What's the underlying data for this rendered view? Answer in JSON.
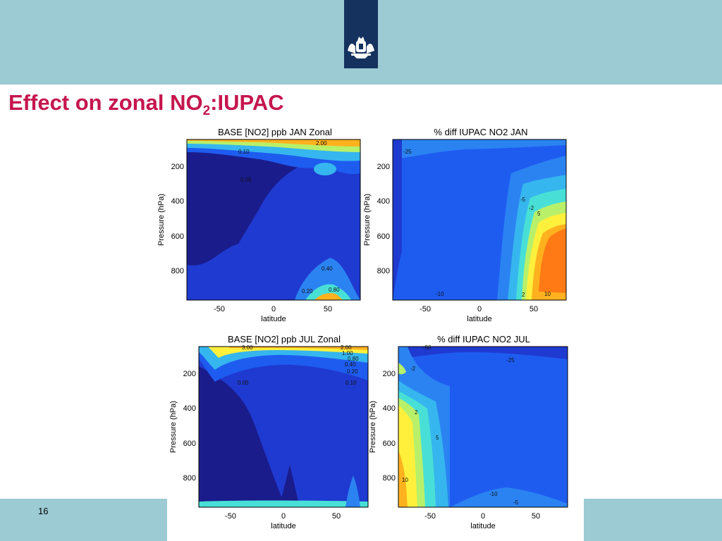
{
  "slide": {
    "title_main": "Effect on zonal NO",
    "title_sub": "2",
    "title_tail": ":IUPAC",
    "page_number": "16"
  },
  "colors": {
    "band": "#9ccbd3",
    "logo_box": "#15325e",
    "title": "#c5164d",
    "contour_scale": [
      "#1a1c8c",
      "#1f3ad0",
      "#1e5cf0",
      "#2b83f2",
      "#36b6ee",
      "#48e0d6",
      "#b8f06a",
      "#fff03c",
      "#ffb21e",
      "#ff7a14",
      "#e84a0c"
    ]
  },
  "logo": {
    "icon": "coat-of-arms-icon"
  },
  "chart_data": [
    {
      "type": "heatmap",
      "title": "BASE [NO2] ppb JAN Zonal",
      "xlabel": "latitude",
      "ylabel": "Pressure (hPa)",
      "xlim": [
        -80,
        80
      ],
      "ylim": [
        1000,
        70
      ],
      "x_ticks": [
        -50,
        0,
        50
      ],
      "y_ticks": [
        200,
        400,
        600,
        800
      ],
      "contour_labels": [
        "2.00",
        "0.10",
        "0.05",
        "0.40",
        "0.20",
        "0.80"
      ]
    },
    {
      "type": "heatmap",
      "title": "% diff IUPAC NO2 JAN",
      "xlabel": "latitude",
      "ylabel": "Pressure (hPa)",
      "xlim": [
        -80,
        80
      ],
      "ylim": [
        1000,
        70
      ],
      "x_ticks": [
        -50,
        0,
        50
      ],
      "y_ticks": [
        200,
        400,
        600,
        800
      ],
      "contour_labels": [
        "-25",
        "-10",
        "-5",
        "-2",
        "5",
        "2",
        "10"
      ]
    },
    {
      "type": "heatmap",
      "title": "BASE [NO2] ppb JUL Zonal",
      "xlabel": "latitude",
      "ylabel": "Pressure (hPa)",
      "xlim": [
        -80,
        80
      ],
      "ylim": [
        1000,
        70
      ],
      "x_ticks": [
        -50,
        0,
        50
      ],
      "y_ticks": [
        200,
        400,
        600,
        800
      ],
      "contour_labels": [
        "3.00",
        "2.00",
        "1.00",
        "0.80",
        "0.40",
        "0.20",
        "0.10",
        "0.05"
      ]
    },
    {
      "type": "heatmap",
      "title": "% diff IUPAC NO2 JUL",
      "xlabel": "latitude",
      "ylabel": "Pressure (hPa)",
      "xlim": [
        -80,
        80
      ],
      "ylim": [
        1000,
        70
      ],
      "x_ticks": [
        -50,
        0,
        50
      ],
      "y_ticks": [
        200,
        400,
        600,
        800
      ],
      "contour_labels": [
        "-50",
        "-25",
        "-10",
        "-5",
        "-2",
        "2",
        "5",
        "10"
      ]
    }
  ]
}
